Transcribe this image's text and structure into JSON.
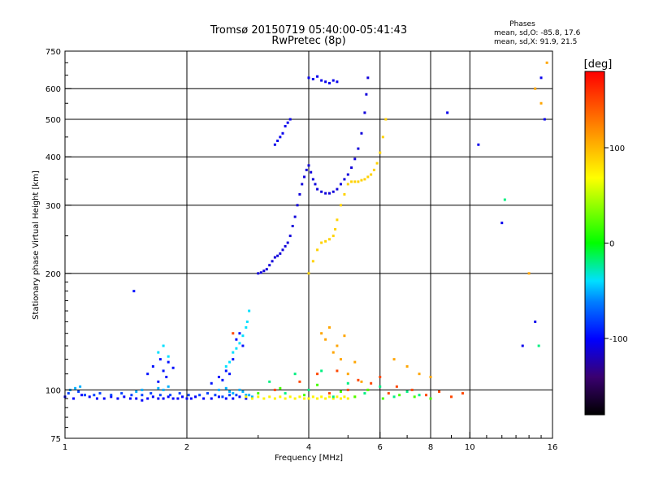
{
  "chart_data": {
    "type": "scatter",
    "title": "Tromsø 20150719 05:40:00-05:41:43",
    "subtitle": "RwPretec (8p)",
    "xlabel": "Frequency [MHz]",
    "ylabel": "Stationary phase Virtual Height [km]",
    "x_scale": "log",
    "y_scale": "log",
    "xlim": [
      1,
      16
    ],
    "ylim": [
      75,
      750
    ],
    "x_ticks": [
      1,
      2,
      4,
      6,
      8,
      10,
      16
    ],
    "x_tick_labels": [
      "1",
      "2",
      "4",
      "6",
      "8",
      "10",
      "16"
    ],
    "x_grid_lines": [
      2,
      4,
      6,
      8,
      10
    ],
    "y_ticks": [
      75,
      100,
      200,
      300,
      400,
      500,
      600,
      750
    ],
    "y_tick_labels": [
      "75",
      "100",
      "200",
      "300",
      "400",
      "500",
      "600",
      "750"
    ],
    "y_grid_lines": [
      100,
      200,
      300,
      400,
      500,
      600
    ],
    "grid": true,
    "phase_stats": {
      "heading": "Phases",
      "line_o": "mean, sd,O: -85.8, 17.6",
      "line_x": "mean, sd,X:  91.9, 21.5"
    },
    "colorbar": {
      "label": "[deg]",
      "range": [
        -180,
        180
      ],
      "ticks": [
        100,
        0,
        -100
      ],
      "tick_labels": [
        "100",
        "0",
        "-100"
      ],
      "colormap": "rainbow: -180 black, -100 blue, -40 cyan, 0 green, 70 yellow, 180 red"
    },
    "series": [
      {
        "phase": -100,
        "x": [
          1.0,
          1.05,
          1.1,
          1.15,
          1.2,
          1.25,
          1.3,
          1.35,
          1.4,
          1.45,
          1.5,
          1.55,
          1.6,
          1.65,
          1.7,
          1.75,
          1.8,
          1.85,
          1.9,
          1.95,
          2.0,
          2.05,
          2.1,
          2.2,
          2.3,
          2.4,
          2.5,
          2.6,
          2.7,
          2.8
        ],
        "y": [
          96,
          95,
          97,
          96,
          95,
          95,
          96,
          95,
          96,
          95,
          95,
          94,
          95,
          96,
          95,
          95,
          96,
          95,
          95,
          96,
          95,
          95,
          96,
          95,
          95,
          96,
          95,
          95,
          96,
          95
        ]
      },
      {
        "phase": -80,
        "x": [
          1.02,
          1.08,
          1.12,
          1.18,
          1.22,
          1.3,
          1.38,
          1.46,
          1.55,
          1.63,
          1.72,
          1.82,
          1.92,
          2.02,
          2.15,
          2.25,
          2.35,
          2.45,
          2.55,
          2.65
        ],
        "y": [
          98,
          99,
          97,
          97,
          98,
          97,
          98,
          97,
          97,
          98,
          97,
          97,
          98,
          97,
          97,
          98,
          97,
          96,
          97,
          97
        ]
      },
      {
        "phase": -50,
        "x": [
          1.03,
          1.06,
          1.09,
          1.5,
          1.55,
          1.7,
          1.75,
          1.8,
          2.4,
          2.5,
          2.55,
          2.6,
          2.7,
          2.75,
          2.8,
          2.85,
          2.9
        ],
        "y": [
          100,
          101,
          102,
          99,
          100,
          101,
          100,
          102,
          100,
          101,
          99,
          98,
          100,
          99,
          97,
          97,
          96
        ]
      },
      {
        "phase": -95,
        "x": [
          1.48,
          1.6,
          1.65,
          1.7,
          1.72,
          1.75,
          1.78,
          1.8,
          1.85,
          2.3,
          2.4,
          2.45,
          2.5,
          2.55,
          2.6,
          2.65,
          2.7,
          2.75
        ],
        "y": [
          180,
          110,
          115,
          105,
          120,
          112,
          108,
          118,
          114,
          104,
          108,
          106,
          112,
          110,
          120,
          135,
          140,
          130
        ]
      },
      {
        "phase": -40,
        "x": [
          1.7,
          1.75,
          1.8,
          2.5,
          2.55,
          2.6,
          2.65,
          2.7,
          2.75,
          2.8,
          2.82,
          2.85
        ],
        "y": [
          125,
          130,
          122,
          115,
          118,
          125,
          128,
          132,
          138,
          145,
          150,
          160
        ]
      },
      {
        "phase": -110,
        "x": [
          3.0,
          3.05,
          3.1,
          3.15,
          3.2,
          3.25,
          3.3,
          3.35,
          3.4,
          3.45,
          3.5,
          3.55,
          3.6,
          3.65,
          3.7,
          3.75,
          3.8,
          3.85,
          3.9,
          3.95,
          4.0,
          4.05,
          4.1,
          4.15,
          4.2,
          4.3,
          4.4,
          4.5,
          4.6,
          4.7,
          4.8,
          4.9,
          5.0,
          5.1,
          5.2,
          5.3,
          5.4,
          5.5,
          5.55,
          5.6
        ],
        "y": [
          200,
          201,
          203,
          205,
          210,
          215,
          220,
          222,
          225,
          230,
          235,
          240,
          250,
          265,
          280,
          300,
          320,
          340,
          355,
          370,
          380,
          365,
          350,
          340,
          330,
          325,
          322,
          322,
          325,
          330,
          340,
          350,
          360,
          375,
          395,
          420,
          460,
          520,
          580,
          640
        ]
      },
      {
        "phase": -105,
        "x": [
          3.3,
          3.35,
          3.4,
          3.45,
          3.5,
          3.55,
          3.6,
          4.0,
          4.1,
          4.2,
          4.3,
          4.4,
          4.5,
          4.6,
          4.7,
          8.8,
          10.5,
          12.0,
          13.5,
          14.5,
          15.0,
          15.3
        ],
        "y": [
          430,
          440,
          450,
          460,
          480,
          490,
          500,
          640,
          635,
          645,
          630,
          625,
          620,
          630,
          625,
          520,
          430,
          270,
          130,
          150,
          640,
          500
        ]
      },
      {
        "phase": 90,
        "x": [
          4.0,
          4.1,
          4.2,
          4.3,
          4.4,
          4.5,
          4.6,
          4.65,
          4.7,
          4.8,
          4.9,
          5.0,
          5.1,
          5.2,
          5.3,
          5.4,
          5.5,
          5.6,
          5.7,
          5.8,
          5.9,
          6.0,
          6.1,
          6.2
        ],
        "y": [
          200,
          215,
          230,
          240,
          242,
          245,
          250,
          260,
          275,
          300,
          320,
          340,
          345,
          345,
          345,
          348,
          350,
          355,
          360,
          370,
          385,
          410,
          450,
          500
        ]
      },
      {
        "phase": 75,
        "x": [
          2.8,
          2.9,
          3.0,
          3.1,
          3.2,
          3.3,
          3.4,
          3.5,
          3.6,
          3.7,
          3.8,
          3.9,
          4.0,
          4.1,
          4.2,
          4.3,
          4.4,
          4.5,
          4.6,
          4.7,
          4.8,
          4.9,
          5.0,
          5.2
        ],
        "y": [
          96,
          95,
          96,
          95,
          96,
          95,
          96,
          95,
          96,
          95,
          96,
          95,
          95,
          96,
          95,
          96,
          95,
          96,
          95,
          96,
          95,
          96,
          95,
          96
        ]
      },
      {
        "phase": 110,
        "x": [
          4.3,
          4.4,
          4.5,
          4.6,
          4.7,
          4.8,
          4.9,
          5.0,
          5.2,
          5.4,
          5.6,
          6.5,
          7.0,
          7.5,
          8.0,
          14.0,
          14.5,
          15.0,
          15.5
        ],
        "y": [
          140,
          135,
          145,
          125,
          130,
          120,
          138,
          110,
          118,
          105,
          100,
          120,
          115,
          110,
          108,
          200,
          600,
          550,
          700
        ]
      },
      {
        "phase": 150,
        "x": [
          2.6,
          3.3,
          3.8,
          4.2,
          4.5,
          4.7,
          5.0,
          5.3,
          5.7,
          6.0,
          6.3,
          6.6,
          7.2,
          7.8,
          8.4,
          9.0,
          9.6
        ],
        "y": [
          140,
          100,
          105,
          110,
          98,
          112,
          100,
          106,
          104,
          108,
          98,
          102,
          100,
          97,
          99,
          96,
          98
        ]
      },
      {
        "phase": -20,
        "x": [
          3.2,
          3.5,
          3.7,
          4.0,
          4.3,
          4.6,
          5.0,
          5.5,
          6.0,
          6.5,
          7.0,
          7.5,
          12.2,
          14.8
        ],
        "y": [
          105,
          98,
          110,
          100,
          112,
          96,
          104,
          98,
          102,
          96,
          99,
          97,
          310,
          130
        ]
      },
      {
        "phase": 20,
        "x": [
          3.0,
          3.4,
          3.9,
          4.2,
          4.8,
          5.2,
          5.6,
          6.1,
          6.7,
          7.3,
          8.0
        ],
        "y": [
          98,
          101,
          97,
          103,
          99,
          96,
          100,
          95,
          97,
          96,
          95
        ]
      }
    ]
  }
}
